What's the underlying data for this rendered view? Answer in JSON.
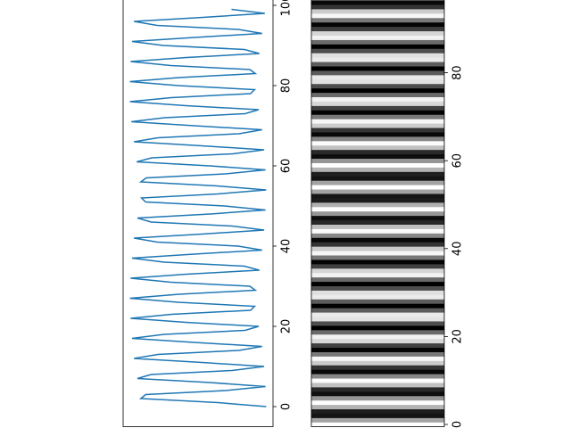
{
  "chart_data": [
    {
      "type": "line",
      "color": "#1f77b4",
      "orientation": "vertical",
      "xlim": [
        -1.1,
        1.1
      ],
      "ylim": [
        -5,
        105
      ],
      "yticks": [
        0,
        20,
        40,
        60,
        80,
        100
      ],
      "y": [
        0,
        1,
        2,
        3,
        4,
        5,
        6,
        7,
        8,
        9,
        10,
        11,
        12,
        13,
        14,
        15,
        16,
        17,
        18,
        19,
        20,
        21,
        22,
        23,
        24,
        25,
        26,
        27,
        28,
        29,
        30,
        31,
        32,
        33,
        34,
        35,
        36,
        37,
        38,
        39,
        40,
        41,
        42,
        43,
        44,
        45,
        46,
        47,
        48,
        49,
        50,
        51,
        52,
        53,
        54,
        55,
        56,
        57,
        58,
        59,
        60,
        61,
        62,
        63,
        64,
        65,
        66,
        67,
        68,
        69,
        70,
        71,
        72,
        73,
        74,
        75,
        76,
        77,
        78,
        79,
        80,
        81,
        82,
        83,
        84,
        85,
        86,
        87,
        88,
        89,
        90,
        91,
        92,
        93,
        94,
        95,
        96,
        97,
        98,
        99
      ],
      "values": [
        1.0,
        0.29,
        -0.84,
        -0.77,
        0.4,
        0.99,
        0.17,
        -0.89,
        -0.69,
        0.5,
        0.97,
        0.06,
        -0.94,
        -0.59,
        0.6,
        0.94,
        -0.06,
        -0.97,
        -0.5,
        0.69,
        0.89,
        -0.18,
        -0.99,
        -0.39,
        0.77,
        0.83,
        -0.29,
        -1.0,
        -0.28,
        0.84,
        0.76,
        -0.4,
        -0.99,
        -0.17,
        0.9,
        0.68,
        -0.5,
        -0.97,
        -0.06,
        0.94,
        0.59,
        -0.6,
        -0.94,
        0.06,
        0.97,
        0.5,
        -0.69,
        -0.89,
        0.18,
        0.99,
        0.39,
        -0.77,
        -0.83,
        0.29,
        1.0,
        0.28,
        -0.84,
        -0.76,
        0.4,
        0.99,
        0.17,
        -0.9,
        -0.68,
        0.51,
        0.97,
        0.05,
        -0.94,
        -0.59,
        0.6,
        0.94,
        -0.06,
        -0.98,
        -0.49,
        0.69,
        0.89,
        -0.18,
        -1.0,
        -0.39,
        0.77,
        0.83,
        -0.29,
        -1.0,
        -0.28,
        0.84,
        0.76,
        -0.4,
        -0.99,
        -0.17,
        0.9,
        0.68,
        -0.51,
        -0.97,
        -0.05,
        0.94,
        0.59,
        -0.6,
        -0.94,
        0.07,
        0.98,
        0.49
      ]
    },
    {
      "type": "image",
      "colormap": "gray",
      "source": 0,
      "ylim": [
        -0.5,
        99.5
      ],
      "yticks": [
        0,
        20,
        40,
        60,
        80
      ]
    }
  ]
}
